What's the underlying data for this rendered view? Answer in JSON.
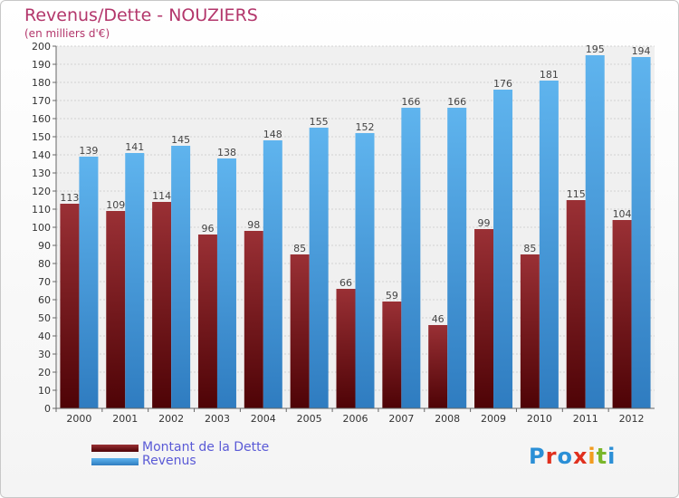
{
  "title": "Revenus/Dette - NOUZIERS",
  "subtitle": "(en milliers d'€)",
  "logo": {
    "text": "Proxiti",
    "letters": [
      {
        "ch": "P",
        "color": "#2b8fd6"
      },
      {
        "ch": "r",
        "color": "#e0301e"
      },
      {
        "ch": "o",
        "color": "#2b8fd6"
      },
      {
        "ch": "x",
        "color": "#e0301e"
      },
      {
        "ch": "i",
        "color": "#f29c1f"
      },
      {
        "ch": "t",
        "color": "#7ab62a"
      },
      {
        "ch": "i",
        "color": "#2b8fd6"
      }
    ]
  },
  "chart_data": {
    "type": "bar",
    "title": "Revenus/Dette - NOUZIERS",
    "subtitle": "(en milliers d'€)",
    "categories": [
      "2000",
      "2001",
      "2002",
      "2003",
      "2004",
      "2005",
      "2006",
      "2007",
      "2008",
      "2009",
      "2010",
      "2011",
      "2012"
    ],
    "series": [
      {
        "name": "Montant de la Dette",
        "color": "#7a1a1e",
        "values": [
          113,
          109,
          114,
          96,
          98,
          85,
          66,
          59,
          46,
          99,
          85,
          115,
          104
        ]
      },
      {
        "name": "Revenus",
        "color": "#4aa3e6",
        "values": [
          139,
          141,
          145,
          138,
          148,
          155,
          152,
          166,
          166,
          176,
          181,
          195,
          194
        ]
      }
    ],
    "ylim": [
      0,
      200
    ],
    "ytick_step": 10,
    "grid": true,
    "legend": "bottom-left"
  }
}
